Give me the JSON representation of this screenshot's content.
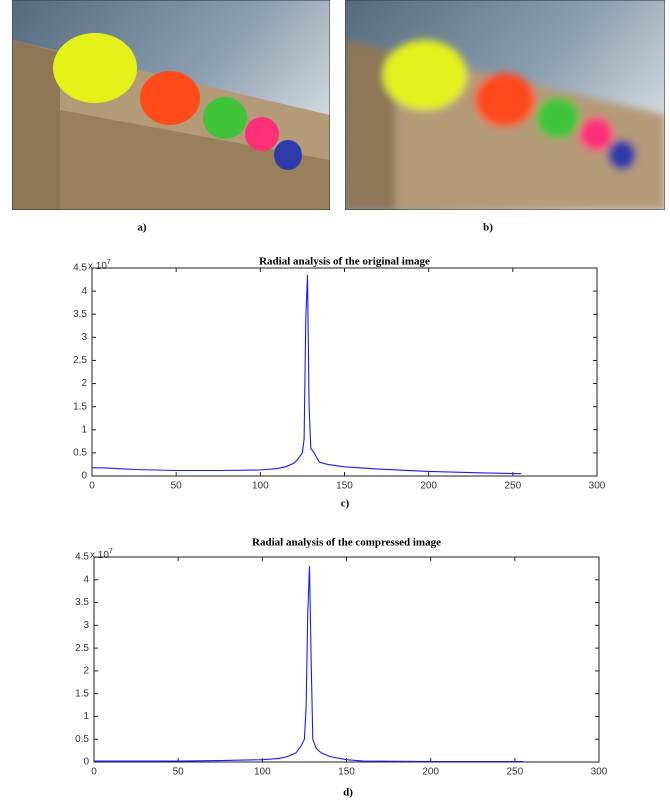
{
  "figure": {
    "captions": [
      "a)",
      "b)",
      "c)",
      "d)"
    ]
  },
  "chart_data": [
    {
      "type": "line",
      "title": "Radial analysis of the original image",
      "y_scale_label": {
        "base": "x 10",
        "exponent": "7"
      },
      "x": [
        0,
        10,
        25,
        50,
        75,
        100,
        110,
        115,
        120,
        122,
        124,
        125,
        126,
        127,
        128,
        129,
        130,
        132,
        135,
        140,
        150,
        170,
        200,
        230,
        255
      ],
      "values": [
        0.18,
        0.17,
        0.14,
        0.12,
        0.12,
        0.13,
        0.16,
        0.2,
        0.28,
        0.35,
        0.45,
        0.5,
        0.8,
        3.4,
        4.35,
        1.5,
        0.6,
        0.5,
        0.3,
        0.25,
        0.2,
        0.15,
        0.1,
        0.07,
        0.05
      ],
      "color": "#1a1aff",
      "xlim": [
        0,
        300
      ],
      "ylim": [
        0,
        4.5
      ],
      "xticks": [
        0,
        50,
        100,
        150,
        200,
        250,
        300
      ],
      "yticks": [
        0,
        0.5,
        1,
        1.5,
        2,
        2.5,
        3,
        3.5,
        4,
        4.5
      ]
    },
    {
      "type": "line",
      "title": "Radial analysis of the compressed image",
      "y_scale_label": {
        "base": "x 10",
        "exponent": "7"
      },
      "x": [
        0,
        25,
        50,
        75,
        100,
        110,
        115,
        120,
        123,
        125,
        126,
        127,
        128,
        129,
        130,
        132,
        135,
        140,
        150,
        160,
        200,
        255
      ],
      "values": [
        0.02,
        0.02,
        0.02,
        0.03,
        0.05,
        0.08,
        0.12,
        0.2,
        0.35,
        0.5,
        1.2,
        3.3,
        4.3,
        2.3,
        0.5,
        0.3,
        0.2,
        0.12,
        0.05,
        0.02,
        0.01,
        0.01
      ],
      "color": "#1a1aff",
      "xlim": [
        0,
        300
      ],
      "ylim": [
        0,
        4.5
      ],
      "xticks": [
        0,
        50,
        100,
        150,
        200,
        250,
        300
      ],
      "yticks": [
        0,
        0.5,
        1,
        1.5,
        2,
        2.5,
        3,
        3.5,
        4,
        4.5
      ]
    }
  ]
}
